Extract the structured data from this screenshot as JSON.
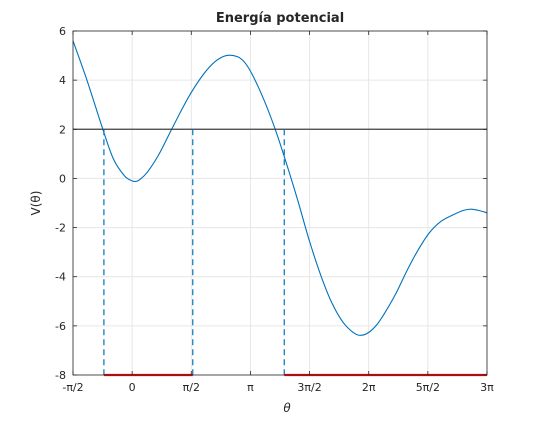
{
  "chart_data": {
    "type": "line",
    "title": "Energía potencial",
    "xlabel": "θ",
    "ylabel": "V(θ)",
    "xlim": [
      -1.571,
      9.425
    ],
    "ylim": [
      -8,
      6
    ],
    "grid": true,
    "xticks": [
      {
        "value": -1.5708,
        "label": "-π/2"
      },
      {
        "value": 0,
        "label": "0"
      },
      {
        "value": 1.5708,
        "label": "π/2"
      },
      {
        "value": 3.1416,
        "label": "π"
      },
      {
        "value": 4.7124,
        "label": "3π/2"
      },
      {
        "value": 6.2832,
        "label": "2π"
      },
      {
        "value": 7.854,
        "label": "5π/2"
      },
      {
        "value": 9.4248,
        "label": "3π"
      }
    ],
    "yticks": [
      {
        "value": -8,
        "label": "-8"
      },
      {
        "value": -6,
        "label": "-6"
      },
      {
        "value": -4,
        "label": "-4"
      },
      {
        "value": -2,
        "label": "-2"
      },
      {
        "value": 0,
        "label": "0"
      },
      {
        "value": 2,
        "label": "2"
      },
      {
        "value": 4,
        "label": "4"
      },
      {
        "value": 6,
        "label": "6"
      }
    ],
    "series": [
      {
        "kind": "curve",
        "color": "#0072BD",
        "x": [
          -1.571,
          -1.2,
          -0.8,
          -0.5,
          -0.2,
          0,
          0.1,
          0.2,
          0.4,
          0.7,
          1.0,
          1.3,
          1.571,
          1.9,
          2.2,
          2.5,
          2.8,
          3.0,
          3.2,
          3.5,
          3.8,
          4.1,
          4.4,
          4.7,
          5.0,
          5.3,
          5.6,
          5.9,
          6.1,
          6.3,
          6.5,
          6.7,
          7.0,
          7.3,
          7.6,
          7.9,
          8.2,
          8.5,
          8.8,
          9.0,
          9.2,
          9.425
        ],
        "y": [
          5.6,
          4.0,
          2.1,
          0.8,
          0.1,
          -0.1,
          -0.12,
          -0.05,
          0.25,
          0.95,
          1.85,
          2.75,
          3.5,
          4.25,
          4.75,
          5.0,
          4.95,
          4.7,
          4.2,
          3.2,
          2.0,
          0.6,
          -0.9,
          -2.5,
          -3.9,
          -5.05,
          -5.85,
          -6.3,
          -6.38,
          -6.25,
          -5.95,
          -5.5,
          -4.7,
          -3.75,
          -2.9,
          -2.2,
          -1.75,
          -1.5,
          -1.3,
          -1.25,
          -1.3,
          -1.4
        ]
      },
      {
        "kind": "horizontal-line",
        "color": "#404040",
        "y": 2,
        "x": [
          -1.571,
          9.425
        ]
      }
    ],
    "dashed_lines": {
      "color": "#0072BD",
      "x": [
        -0.75,
        1.61,
        4.04
      ],
      "y_from": -8,
      "y_to": 2
    },
    "highlight_segments": {
      "color": "#FF0000",
      "y": -8,
      "segments": [
        [
          -0.75,
          1.61
        ],
        [
          4.04,
          9.425
        ]
      ]
    }
  }
}
